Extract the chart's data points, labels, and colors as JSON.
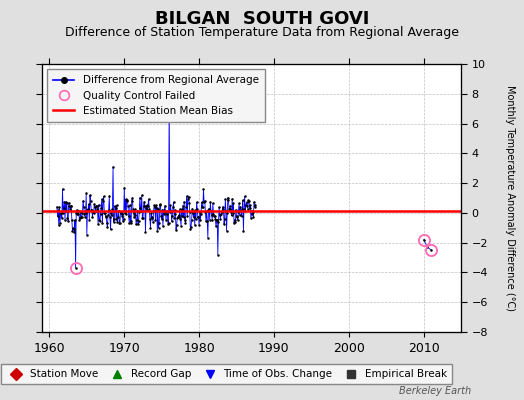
{
  "title": "BILGAN  SOUTH GOVI",
  "subtitle": "Difference of Station Temperature Data from Regional Average",
  "ylabel_right": "Monthly Temperature Anomaly Difference (°C)",
  "xlim": [
    1959,
    2015
  ],
  "ylim": [
    -8,
    10
  ],
  "yticks": [
    -8,
    -6,
    -4,
    -2,
    0,
    2,
    4,
    6,
    8,
    10
  ],
  "xticks": [
    1960,
    1970,
    1980,
    1990,
    2000,
    2010
  ],
  "bg_color": "#e0e0e0",
  "plot_bg_color": "#ffffff",
  "grid_color": "#b0b0b0",
  "title_fontsize": 13,
  "subtitle_fontsize": 9,
  "watermark": "Berkeley Earth",
  "main_line_color": "#0000ff",
  "main_marker_color": "#000000",
  "bias_line_color": "#ff0000",
  "qc_fail_color": "#ff69b4",
  "station_move_color": "#cc0000",
  "record_gap_color": "#008000",
  "tobs_change_color": "#0000ff",
  "empirical_break_color": "#333333",
  "data_start_year": 1961.0,
  "data_end_year": 1987.5,
  "bias_value": 0.1,
  "spike1_year": 1968.5,
  "spike1_value": 3.1,
  "spike2_year": 1976.0,
  "spike2_value": 7.5,
  "spike3_year": 1982.5,
  "spike3_value": -2.8,
  "qc_fail_1_year": 1963.5,
  "qc_fail_1_value": -3.7,
  "isolated_years": [
    2010.0,
    2010.5,
    2011.0
  ],
  "isolated_vals": [
    -1.8,
    -2.3,
    -2.5
  ],
  "qc_fail_isolated": [
    2010.0,
    2011.0
  ],
  "qc_fail_isolated_vals": [
    -1.8,
    -2.5
  ],
  "noise_seed": 12,
  "noise_std": 0.65
}
